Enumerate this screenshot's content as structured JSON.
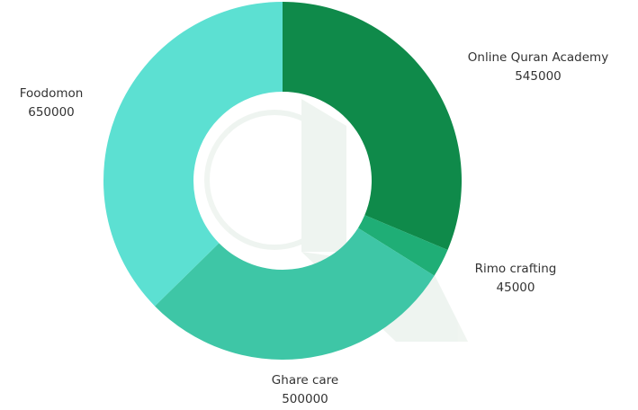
{
  "chart_data": {
    "type": "pie",
    "variant": "donut",
    "categories": [
      "Online Quran Academy",
      "Rimo crafting",
      "Ghare care",
      "Foodomon"
    ],
    "values": [
      545000,
      45000,
      500000,
      650000
    ],
    "value_labels": [
      "545000",
      "45000",
      "500000",
      "650000"
    ],
    "colors": [
      "#0f8a4a",
      "#1fae76",
      "#3ec6a6",
      "#5ce0d2"
    ],
    "title": "",
    "legend": "none"
  }
}
